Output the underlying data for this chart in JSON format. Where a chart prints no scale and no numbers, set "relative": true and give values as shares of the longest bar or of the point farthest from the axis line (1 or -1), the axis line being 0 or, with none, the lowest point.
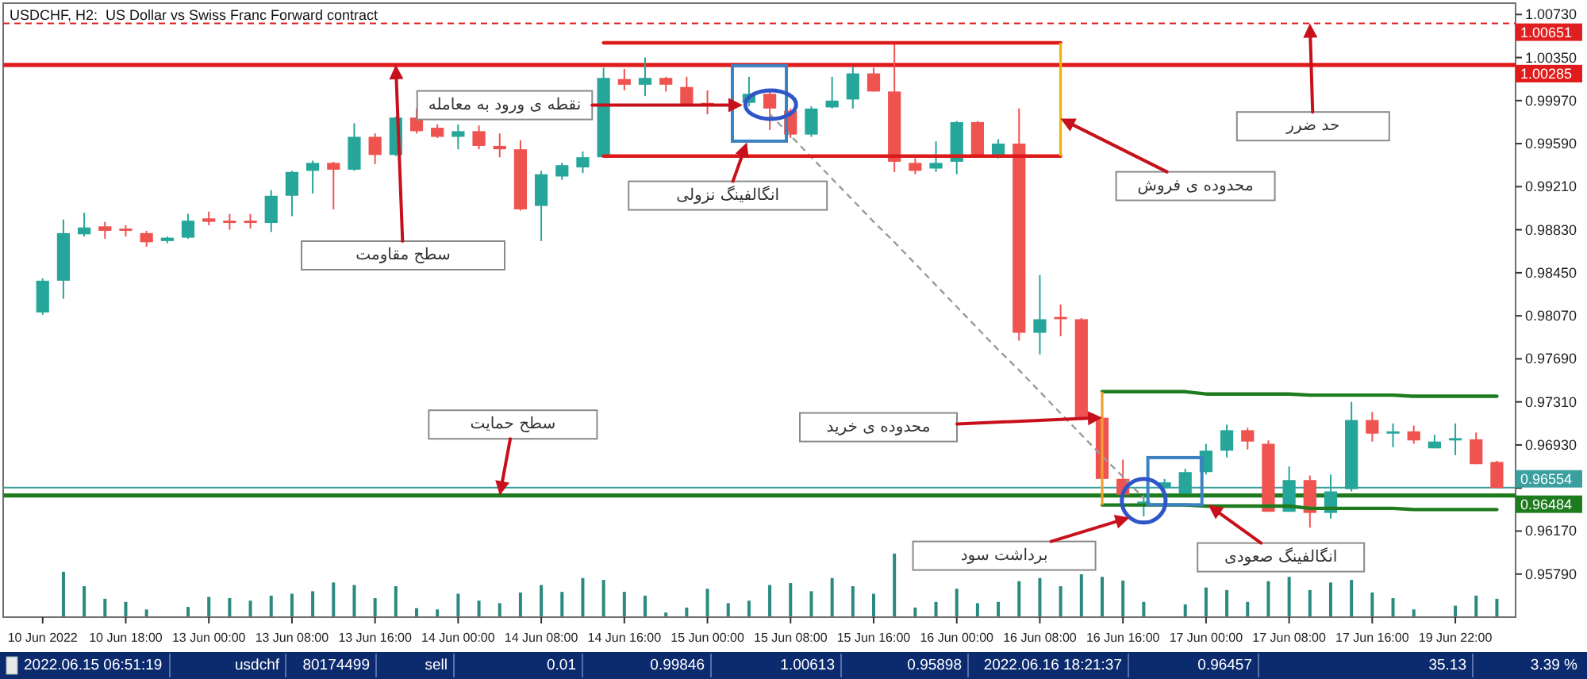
{
  "chart_data": [
    {
      "type": "candlestick",
      "title": "USDCHF, H2:  US Dollar vs Swiss Franc Forward contract",
      "categories": [
        "10 Jun 2022",
        null,
        null,
        null,
        "10 Jun 18:00",
        null,
        null,
        null,
        "13 Jun 00:00",
        null,
        null,
        null,
        "13 Jun 08:00",
        null,
        null,
        null,
        "13 Jun 16:00",
        null,
        null,
        null,
        "14 Jun 00:00",
        null,
        null,
        null,
        "14 Jun 08:00",
        null,
        null,
        null,
        "14 Jun 16:00",
        null,
        null,
        null,
        "15 Jun 00:00",
        null,
        null,
        null,
        "15 Jun 08:00",
        null,
        null,
        null,
        "15 Jun 16:00",
        null,
        null,
        null,
        "16 Jun 00:00",
        null,
        null,
        null,
        "16 Jun 08:00",
        null,
        null,
        null,
        "16 Jun 16:00",
        null,
        null,
        null,
        "17 Jun 00:00",
        null,
        null,
        null,
        "17 Jun 08:00",
        null,
        null,
        null,
        "17 Jun 16:00",
        null,
        null,
        null,
        "19 Jun 22:00",
        null,
        null
      ],
      "ylim": [
        0.9541,
        1.0083
      ],
      "yticks": [
        {
          "value": 1.0073,
          "label": "1.00730"
        },
        {
          "value": 1.0035,
          "label": "1.00350"
        },
        {
          "value": 0.9997,
          "label": "0.99970"
        },
        {
          "value": 0.9959,
          "label": "0.99590"
        },
        {
          "value": 0.9921,
          "label": "0.99210"
        },
        {
          "value": 0.9883,
          "label": "0.98830"
        },
        {
          "value": 0.9845,
          "label": "0.98450"
        },
        {
          "value": 0.9807,
          "label": "0.98070"
        },
        {
          "value": 0.9769,
          "label": "0.97690"
        },
        {
          "value": 0.9731,
          "label": "0.97310"
        },
        {
          "value": 0.9693,
          "label": "0.96930"
        },
        {
          "value": 0.9655,
          "label": null
        },
        {
          "value": 0.9617,
          "label": "0.96170"
        },
        {
          "value": 0.9579,
          "label": "0.95790"
        }
      ],
      "series": [
        {
          "type": "candlestick",
          "ohlc": [
            [
              0.981,
              0.984,
              0.9808,
              0.9838
            ],
            [
              0.9838,
              0.9892,
              0.9822,
              0.988
            ],
            [
              0.9879,
              0.9898,
              0.9877,
              0.9885
            ],
            [
              0.9886,
              0.989,
              0.9875,
              0.9882
            ],
            [
              0.9884,
              0.9887,
              0.9877,
              0.9882
            ],
            [
              0.988,
              0.9882,
              0.9868,
              0.9872
            ],
            [
              0.9873,
              0.9877,
              0.9871,
              0.9876
            ],
            [
              0.9876,
              0.9897,
              0.9875,
              0.9891
            ],
            [
              0.9893,
              0.9899,
              0.9887,
              0.989
            ],
            [
              0.9891,
              0.9897,
              0.9883,
              0.9889
            ],
            [
              0.9891,
              0.9897,
              0.9884,
              0.9889
            ],
            [
              0.9889,
              0.9918,
              0.9881,
              0.9913
            ],
            [
              0.9913,
              0.9935,
              0.9895,
              0.9934
            ],
            [
              0.9935,
              0.9944,
              0.9915,
              0.9942
            ],
            [
              0.9942,
              0.9943,
              0.9901,
              0.9936
            ],
            [
              0.9936,
              0.9977,
              0.9935,
              0.9965
            ],
            [
              0.9965,
              0.9968,
              0.9941,
              0.9949
            ],
            [
              0.9949,
              0.9983,
              0.9948,
              0.9982
            ],
            [
              0.9982,
              0.999,
              0.9968,
              0.997
            ],
            [
              0.9973,
              0.9976,
              0.9964,
              0.9965
            ],
            [
              0.9965,
              0.9976,
              0.9954,
              0.997
            ],
            [
              0.997,
              0.9975,
              0.9954,
              0.9957
            ],
            [
              0.9957,
              0.9968,
              0.9947,
              0.9954
            ],
            [
              0.9954,
              0.9962,
              0.99,
              0.9901
            ],
            [
              0.9904,
              0.9935,
              0.9873,
              0.9932
            ],
            [
              0.993,
              0.9942,
              0.9927,
              0.994
            ],
            [
              0.9938,
              0.9952,
              0.9933,
              0.9947
            ],
            [
              0.9947,
              1.0026,
              0.9947,
              1.0017
            ],
            [
              1.0016,
              1.0025,
              1.0006,
              1.0011
            ],
            [
              1.0011,
              1.0035,
              1.0001,
              1.0017
            ],
            [
              1.0017,
              1.0018,
              1.0005,
              1.0011
            ],
            [
              1.0009,
              1.0018,
              0.9993,
              0.9993
            ],
            [
              0.9995,
              1.0006,
              0.9985,
              0.9992
            ],
            null,
            [
              0.9995,
              1.0018,
              0.9992,
              1.0003
            ],
            [
              1.0003,
              1.0006,
              0.9971,
              0.999
            ],
            [
              0.9988,
              0.999,
              0.9964,
              0.9967
            ],
            [
              0.9967,
              0.9992,
              0.9965,
              0.999
            ],
            [
              0.9991,
              1.0018,
              0.999,
              0.9997
            ],
            [
              0.9998,
              1.0027,
              0.999,
              1.0021
            ],
            [
              1.0021,
              1.0026,
              1.0005,
              1.0005
            ],
            [
              1.0005,
              1.0048,
              0.9934,
              0.9943
            ],
            [
              0.9942,
              0.9946,
              0.9932,
              0.9935
            ],
            [
              0.9937,
              0.9961,
              0.9934,
              0.9942
            ],
            [
              0.9943,
              0.9979,
              0.9932,
              0.9978
            ],
            [
              0.9978,
              0.9979,
              0.9948,
              0.9948
            ],
            [
              0.9948,
              0.9963,
              0.9946,
              0.9959
            ],
            [
              0.9959,
              0.999,
              0.9785,
              0.9792
            ],
            [
              0.9792,
              0.9843,
              0.9773,
              0.9804
            ],
            [
              0.9806,
              0.9817,
              0.9789,
              0.9804
            ],
            [
              0.9804,
              0.9805,
              0.9715,
              0.9717
            ],
            [
              0.9717,
              0.9718,
              0.9658,
              0.9663
            ],
            [
              0.9663,
              0.968,
              0.9648,
              0.9649
            ],
            [
              0.9642,
              0.9649,
              0.963,
              0.9643
            ],
            [
              0.9655,
              0.9663,
              0.9654,
              0.966
            ],
            [
              0.965,
              0.9672,
              0.965,
              0.9669
            ],
            [
              0.9669,
              0.9694,
              0.9667,
              0.9688
            ],
            [
              0.9688,
              0.9711,
              0.9682,
              0.9706
            ],
            [
              0.9706,
              0.9708,
              0.9689,
              0.9696
            ],
            [
              0.9694,
              0.9697,
              0.9634,
              0.9634
            ],
            [
              0.9634,
              0.9674,
              0.9634,
              0.9662
            ],
            [
              0.9662,
              0.9666,
              0.962,
              0.9633
            ],
            [
              0.9633,
              0.9667,
              0.9628,
              0.9652
            ],
            [
              0.9654,
              0.9731,
              0.9652,
              0.9715
            ],
            [
              0.9715,
              0.9722,
              0.9696,
              0.9703
            ],
            [
              0.9703,
              0.9712,
              0.9691,
              0.9705
            ],
            [
              0.9705,
              0.971,
              0.9694,
              0.9697
            ],
            [
              0.969,
              0.9702,
              0.969,
              0.9696
            ],
            [
              0.9697,
              0.9712,
              0.9684,
              0.9699
            ],
            [
              0.9698,
              0.9704,
              0.9676,
              0.9676
            ],
            [
              0.9678,
              0.9679,
              0.9655,
              0.9655
            ]
          ],
          "colors": [
            "#26a69a",
            "#26a69a",
            "#26a69a",
            "#ef5350",
            "#ef5350",
            "#ef5350",
            "#26a69a",
            "#26a69a",
            "#ef5350",
            "#ef5350",
            "#ef5350",
            "#26a69a",
            "#26a69a",
            "#26a69a",
            "#ef5350",
            "#26a69a",
            "#ef5350",
            "#26a69a",
            "#ef5350",
            "#ef5350",
            "#26a69a",
            "#ef5350",
            "#ef5350",
            "#ef5350",
            "#26a69a",
            "#26a69a",
            "#26a69a",
            "#26a69a",
            "#ef5350",
            "#26a69a",
            "#ef5350",
            "#ef5350",
            "#ef5350",
            null,
            "#26a69a",
            "#ef5350",
            "#ef5350",
            "#26a69a",
            "#26a69a",
            "#26a69a",
            "#ef5350",
            "#ef5350",
            "#ef5350",
            "#26a69a",
            "#26a69a",
            "#ef5350",
            "#26a69a",
            "#ef5350",
            "#26a69a",
            "#ef5350",
            "#ef5350",
            "#ef5350",
            "#ef5350",
            "#26a69a",
            "#26a69a",
            "#26a69a",
            "#26a69a",
            "#26a69a",
            "#ef5350",
            "#ef5350",
            "#26a69a",
            "#ef5350",
            "#26a69a",
            "#26a69a",
            "#ef5350",
            "#26a69a",
            "#ef5350",
            "#26a69a",
            "#26a69a",
            "#ef5350",
            "#ef5350"
          ]
        },
        {
          "type": "line",
          "color": "#9a9a9a",
          "line_style": "dashed",
          "values": [
            null,
            null,
            null,
            null,
            null,
            null,
            null,
            null,
            null,
            null,
            null,
            null,
            null,
            null,
            null,
            null,
            null,
            null,
            null,
            null,
            null,
            null,
            null,
            null,
            null,
            null,
            null,
            null,
            null,
            null,
            null,
            null,
            null,
            null,
            null,
            0.9985,
            0.9966,
            0.9947,
            0.9928,
            0.9909,
            0.989,
            0.9872,
            0.9853,
            0.9834,
            0.9815,
            0.9796,
            0.9777,
            0.9759,
            0.974,
            0.9721,
            0.9702,
            0.9683,
            0.9665,
            0.9646,
            null,
            null,
            null,
            null,
            null,
            null,
            null,
            null,
            null,
            null,
            null,
            null,
            null,
            null,
            null,
            null,
            null
          ]
        },
        {
          "type": "line",
          "color": "#dd1a1a",
          "values": [
            null,
            null,
            null,
            null,
            null,
            null,
            null,
            null,
            null,
            null,
            null,
            null,
            null,
            null,
            null,
            null,
            null,
            null,
            null,
            null,
            null,
            null,
            null,
            null,
            null,
            null,
            null,
            1.0048,
            1.0048,
            1.0048,
            1.0048,
            1.0048,
            1.0048,
            1.0048,
            1.0048,
            1.0048,
            1.0048,
            1.0048,
            1.0048,
            1.0048,
            1.0048,
            1.0048,
            1.0048,
            1.0048,
            1.0048,
            1.0048,
            1.0048,
            1.0048,
            1.0048,
            1.0048,
            null,
            null,
            null,
            null,
            null,
            null,
            null,
            null,
            null,
            null,
            null,
            null,
            null,
            null,
            null,
            null,
            null,
            null,
            null,
            null,
            null
          ]
        },
        {
          "type": "line",
          "color": "#dd1a1a",
          "values": [
            null,
            null,
            null,
            null,
            null,
            null,
            null,
            null,
            null,
            null,
            null,
            null,
            null,
            null,
            null,
            null,
            null,
            null,
            null,
            null,
            null,
            null,
            null,
            null,
            null,
            null,
            null,
            0.9948,
            0.9948,
            0.9948,
            0.9948,
            0.9948,
            0.9948,
            0.9948,
            0.9948,
            0.9948,
            0.9948,
            0.9948,
            0.9948,
            0.9948,
            0.9948,
            0.9948,
            0.9948,
            0.9948,
            0.9948,
            0.9948,
            0.9948,
            0.9948,
            0.9948,
            0.9948,
            null,
            null,
            null,
            null,
            null,
            null,
            null,
            null,
            null,
            null,
            null,
            null,
            null,
            null,
            null,
            null,
            null,
            null,
            null,
            null,
            null
          ]
        },
        {
          "type": "line",
          "color": "#1e7b1e",
          "values": [
            null,
            null,
            null,
            null,
            null,
            null,
            null,
            null,
            null,
            null,
            null,
            null,
            null,
            null,
            null,
            null,
            null,
            null,
            null,
            null,
            null,
            null,
            null,
            null,
            null,
            null,
            null,
            null,
            null,
            null,
            null,
            null,
            null,
            null,
            null,
            null,
            null,
            null,
            null,
            null,
            null,
            null,
            null,
            null,
            null,
            null,
            null,
            null,
            null,
            null,
            null,
            0.974,
            0.974,
            0.974,
            0.974,
            0.974,
            0.9738,
            0.9738,
            0.9738,
            0.9738,
            0.9738,
            0.9737,
            0.9737,
            0.9737,
            0.9737,
            0.9737,
            0.9736,
            0.9736,
            0.9736,
            0.9736,
            0.9736
          ]
        },
        {
          "type": "line",
          "color": "#1e7b1e",
          "values": [
            null,
            null,
            null,
            null,
            null,
            null,
            null,
            null,
            null,
            null,
            null,
            null,
            null,
            null,
            null,
            null,
            null,
            null,
            null,
            null,
            null,
            null,
            null,
            null,
            null,
            null,
            null,
            null,
            null,
            null,
            null,
            null,
            null,
            null,
            null,
            null,
            null,
            null,
            null,
            null,
            null,
            null,
            null,
            null,
            null,
            null,
            null,
            null,
            null,
            null,
            null,
            0.964,
            0.964,
            0.964,
            0.964,
            0.964,
            0.9639,
            0.9639,
            0.9639,
            0.9639,
            0.9639,
            0.9637,
            0.9637,
            0.9637,
            0.9637,
            0.9637,
            0.9636,
            0.9636,
            0.9636,
            0.9636,
            0.9636
          ]
        }
      ],
      "ref_lines": [
        {
          "axis": "y",
          "value": 1.00651,
          "label": "1.00651",
          "color": "#e02020",
          "line_style": "dashed"
        },
        {
          "axis": "y",
          "value": 1.00285,
          "label": "1.00285",
          "color": "#e01b1b"
        },
        {
          "axis": "y",
          "value": 0.96554,
          "label": "0.96554",
          "color": "#3a9f9f"
        },
        {
          "axis": "y",
          "value": 0.96484,
          "label": "0.96484",
          "color": "#1e7b1e"
        }
      ],
      "annotations": [
        "نقطه ی ورود به معامله",
        "سطح مقاومت",
        "انگالفینگ نزولی",
        "محدوده ی فروش",
        "حد ضرر",
        "سطح حمایت",
        "محدوده ی خرید",
        "برداشت سود",
        "انگالفینگ صعودی",
        "2022.06.15 06:51:19",
        "usdchf",
        "80174499",
        "sell",
        "0.01",
        "0.99846",
        "1.00613",
        "0.95898",
        "2022.06.16 18:21:37",
        "0.96457",
        "35.13",
        "3.39 %"
      ]
    },
    {
      "type": "bar",
      "relative": true,
      "color": "#2a8a80",
      "categories": [
        null,
        null,
        null,
        null,
        null,
        null,
        null,
        null,
        null,
        null,
        null,
        null,
        null,
        null,
        null,
        null,
        null,
        null,
        null,
        null,
        null,
        null,
        null,
        null,
        null,
        null,
        null,
        null,
        null,
        null,
        null,
        null,
        null,
        null,
        null,
        null,
        null,
        null,
        null,
        null,
        null,
        null,
        null,
        null,
        null,
        null,
        null,
        null,
        null,
        null,
        null,
        null,
        null,
        null,
        null,
        null,
        null,
        null,
        null,
        null,
        null,
        null,
        null,
        null,
        null,
        null,
        null,
        null,
        null,
        null,
        null
      ],
      "values": [
        null,
        0.71,
        0.48,
        0.28,
        0.23,
        0.11,
        null,
        0.15,
        0.31,
        0.29,
        0.25,
        0.33,
        0.36,
        0.4,
        0.54,
        0.5,
        0.29,
        0.48,
        0.13,
        0.11,
        0.36,
        0.25,
        0.21,
        0.38,
        0.5,
        0.39,
        0.61,
        0.58,
        0.39,
        0.33,
        0.06,
        0.14,
        0.44,
        0.21,
        0.25,
        0.5,
        0.53,
        0.4,
        0.61,
        0.48,
        0.36,
        1,
        0.14,
        0.23,
        0.44,
        0.21,
        0.23,
        0.56,
        0.61,
        0.48,
        0.67,
        0.63,
        0.57,
        0.23,
        null,
        0.19,
        0.46,
        0.42,
        0.23,
        0.56,
        0.63,
        0.42,
        0.54,
        0.58,
        0.38,
        0.29,
        0.11,
        null,
        0.17,
        0.33,
        0.28
      ]
    }
  ]
}
